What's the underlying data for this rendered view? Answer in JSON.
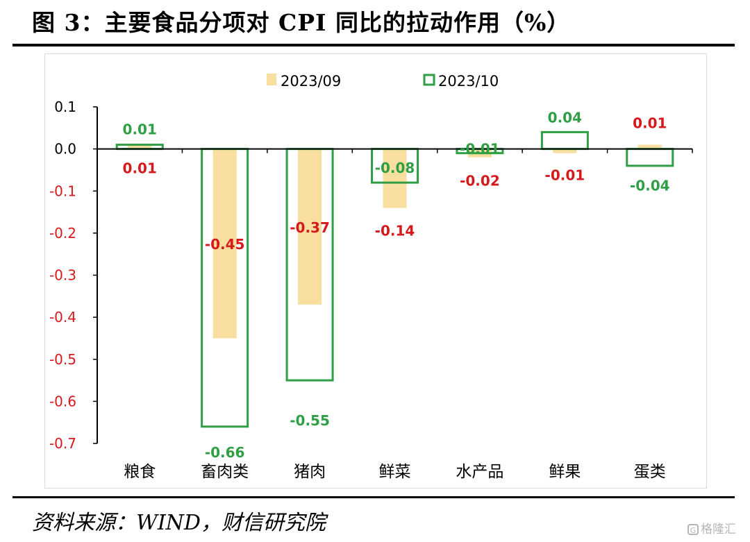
{
  "title": "图 3：主要食品分项对 CPI 同比的拉动作用（%）",
  "source": "资料来源：WIND，财信研究院",
  "watermark": "格隆汇",
  "colors": {
    "sep_fill": "#f8dfa0",
    "oct_stroke": "#2e9f44",
    "label_green": "#2e9f44",
    "label_red": "#d7191c",
    "axis": "#000000",
    "tick_positive": "#000000",
    "tick_negative": "#d7191c"
  },
  "chart_data": {
    "type": "bar",
    "categories": [
      "粮食",
      "畜肉类",
      "猪肉",
      "鲜菜",
      "水产品",
      "鲜果",
      "蛋类"
    ],
    "series": [
      {
        "name": "2023/09",
        "values": [
          0.01,
          -0.45,
          -0.37,
          -0.14,
          -0.02,
          -0.01,
          0.01
        ],
        "style": "filled"
      },
      {
        "name": "2023/10",
        "values": [
          0.01,
          -0.66,
          -0.55,
          -0.08,
          -0.01,
          0.04,
          -0.04
        ],
        "style": "outline"
      }
    ],
    "data_labels": {
      "2023/09": [
        "0.01",
        "-0.45",
        "-0.37",
        "-0.14",
        "-0.02",
        "-0.01",
        "0.01"
      ],
      "2023/10": [
        "0.01",
        "-0.66",
        "-0.55",
        "-0.08",
        "-0.01",
        "0.04",
        "-0.04"
      ]
    },
    "y_ticks": [
      0.1,
      0.0,
      -0.1,
      -0.2,
      -0.3,
      -0.4,
      -0.5,
      -0.6,
      -0.7
    ],
    "y_tick_labels": [
      "0.1",
      "0.0",
      "-0.1",
      "-0.2",
      "-0.3",
      "-0.4",
      "-0.5",
      "-0.6",
      "-0.7"
    ],
    "ylim": [
      -0.7,
      0.1
    ],
    "grid": false,
    "legend_position": "top-center",
    "xlabel": "",
    "ylabel": ""
  }
}
